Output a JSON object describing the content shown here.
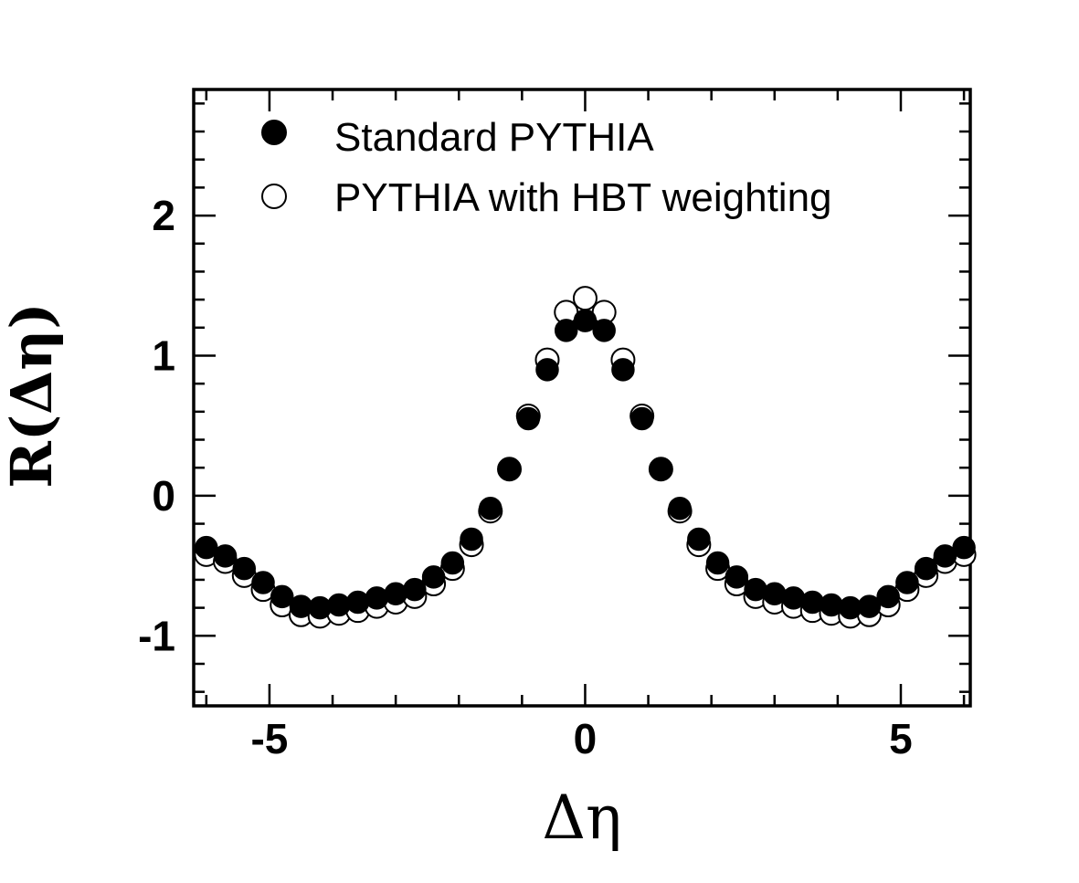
{
  "chart_data": {
    "type": "scatter",
    "xlabel": "Δη",
    "ylabel": "R(Δη)",
    "xlim": [
      -6.2,
      6.1
    ],
    "ylim": [
      -1.5,
      2.9
    ],
    "x_ticks": [
      -5,
      0,
      5
    ],
    "y_ticks": [
      -1,
      0,
      1,
      2
    ],
    "x_tick_labels": [
      "-5",
      "0",
      "5"
    ],
    "y_tick_labels": [
      "-1",
      "0",
      "1",
      "2"
    ],
    "legend_position": "top-left",
    "grid": false,
    "series": [
      {
        "name": "Standard PYTHIA",
        "marker": "filled-circle",
        "color": "#000000",
        "x": [
          -6.0,
          -5.7,
          -5.4,
          -5.1,
          -4.8,
          -4.5,
          -4.2,
          -3.9,
          -3.6,
          -3.3,
          -3.0,
          -2.7,
          -2.4,
          -2.1,
          -1.8,
          -1.5,
          -1.2,
          -0.9,
          -0.6,
          -0.3,
          0.0,
          0.3,
          0.6,
          0.9,
          1.2,
          1.5,
          1.8,
          2.1,
          2.4,
          2.7,
          3.0,
          3.3,
          3.6,
          3.9,
          4.2,
          4.5,
          4.8,
          5.1,
          5.4,
          5.7,
          6.0
        ],
        "y": [
          -0.37,
          -0.43,
          -0.52,
          -0.62,
          -0.72,
          -0.79,
          -0.8,
          -0.78,
          -0.76,
          -0.73,
          -0.7,
          -0.67,
          -0.58,
          -0.48,
          -0.31,
          -0.09,
          0.19,
          0.55,
          0.9,
          1.18,
          1.25,
          1.18,
          0.9,
          0.55,
          0.19,
          -0.09,
          -0.31,
          -0.48,
          -0.58,
          -0.67,
          -0.7,
          -0.73,
          -0.76,
          -0.78,
          -0.8,
          -0.79,
          -0.72,
          -0.62,
          -0.52,
          -0.43,
          -0.37
        ]
      },
      {
        "name": "PYTHIA with HBT weighting",
        "marker": "open-circle",
        "color": "#000000",
        "x": [
          -6.0,
          -5.7,
          -5.4,
          -5.1,
          -4.8,
          -4.5,
          -4.2,
          -3.9,
          -3.6,
          -3.3,
          -3.0,
          -2.7,
          -2.4,
          -2.1,
          -1.8,
          -1.5,
          -1.2,
          -0.9,
          -0.6,
          -0.3,
          0.0,
          0.3,
          0.6,
          0.9,
          1.2,
          1.5,
          1.8,
          2.1,
          2.4,
          2.7,
          3.0,
          3.3,
          3.6,
          3.9,
          4.2,
          4.5,
          4.8,
          5.1,
          5.4,
          5.7,
          6.0
        ],
        "y": [
          -0.42,
          -0.47,
          -0.57,
          -0.67,
          -0.78,
          -0.85,
          -0.86,
          -0.84,
          -0.82,
          -0.79,
          -0.76,
          -0.72,
          -0.63,
          -0.52,
          -0.35,
          -0.11,
          0.19,
          0.57,
          0.97,
          1.31,
          1.41,
          1.31,
          0.97,
          0.57,
          0.19,
          -0.11,
          -0.35,
          -0.52,
          -0.63,
          -0.72,
          -0.76,
          -0.79,
          -0.82,
          -0.84,
          -0.86,
          -0.85,
          -0.78,
          -0.67,
          -0.57,
          -0.47,
          -0.42
        ]
      }
    ]
  }
}
